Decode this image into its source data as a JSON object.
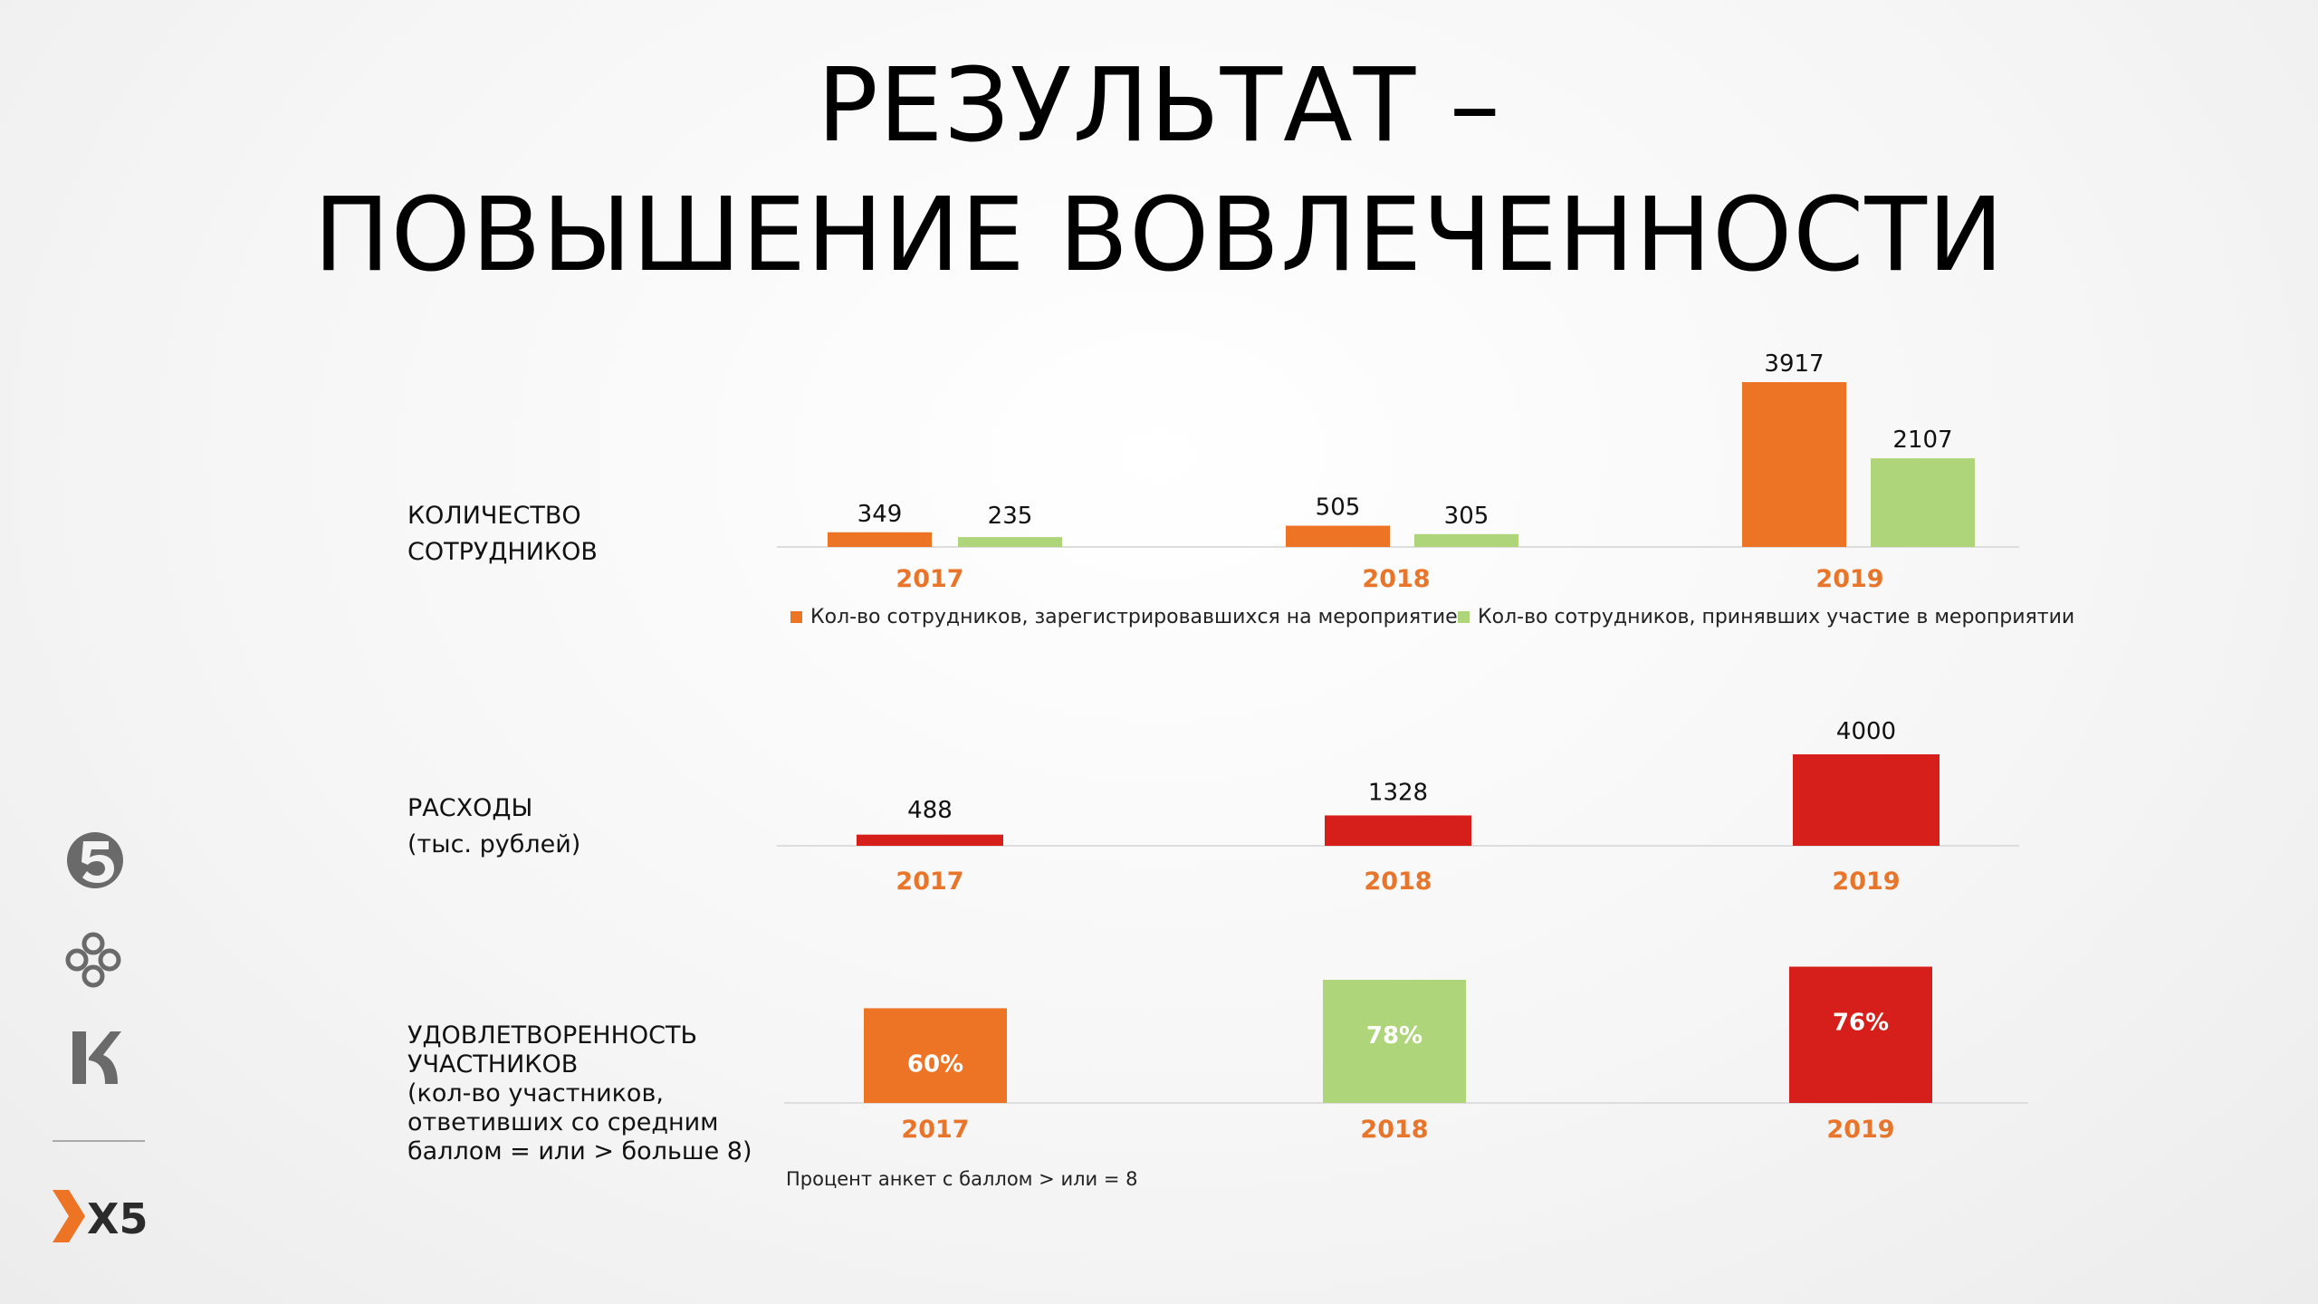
{
  "title": {
    "line1": "РЕЗУЛЬТАТ –",
    "line2": "ПОВЫШЕНИЕ ВОВЛЕЧЕННОСТИ"
  },
  "sections": [
    {
      "label_lines": [
        "КОЛИЧЕСТВО",
        "СОТРУДНИКОВ"
      ]
    },
    {
      "label_lines": [
        "РАСХОДЫ",
        "(тыс. рублей)"
      ]
    },
    {
      "label_lines": [
        "УДОВЛЕТВОРЕННОСТЬ",
        "УЧАСТНИКОВ",
        "(кол-во участников,",
        "ответивших со средним",
        "баллом = или > больше 8)"
      ]
    }
  ],
  "legend": [
    {
      "label": "Кол-во сотрудников, зарегистрировавшихся  на мероприятие",
      "color": "#ED7425"
    },
    {
      "label": "Кол-во сотрудников, принявших  участие в мероприятии",
      "color": "#AED57A"
    }
  ],
  "footnote": "Процент анкет с баллом > или  = 8",
  "brand": {
    "logos": [
      "pyaterochka-logo",
      "perekrestok-logo",
      "karusel-logo"
    ],
    "x5_text": "X5"
  },
  "chart_data": [
    {
      "type": "bar",
      "categories": [
        "2017",
        "2018",
        "2019"
      ],
      "series": [
        {
          "name": "Кол-во сотрудников, зарегистрировавшихся  на мероприятие",
          "values": [
            349,
            505,
            3917
          ],
          "color": "#ED7425"
        },
        {
          "name": "Кол-во сотрудников, принявших  участие в мероприятии",
          "values": [
            235,
            305,
            2107
          ],
          "color": "#AED57A"
        }
      ],
      "data_labels": [
        "349",
        "505",
        "3917",
        "235",
        "305",
        "2107"
      ],
      "ylim": [
        0,
        3917
      ],
      "category_label_color": "#E8752A",
      "legend_position": "bottom"
    },
    {
      "type": "bar",
      "categories": [
        "2017",
        "2018",
        "2019"
      ],
      "series": [
        {
          "values": [
            488,
            1328,
            4000
          ],
          "color": "#D61F1A"
        }
      ],
      "data_labels": [
        "488",
        "1328",
        "4000"
      ],
      "ylim": [
        0,
        4000
      ],
      "category_label_color": "#E8752A"
    },
    {
      "type": "bar",
      "categories": [
        "2017",
        "2018",
        "2019"
      ],
      "series": [
        {
          "values": [
            60,
            78,
            76
          ],
          "colors": [
            "#ED7425",
            "#AED57A",
            "#D61F1A"
          ]
        }
      ],
      "data_labels": [
        "60%",
        "78%",
        "76%"
      ],
      "category_label_color": "#E8752A"
    }
  ]
}
